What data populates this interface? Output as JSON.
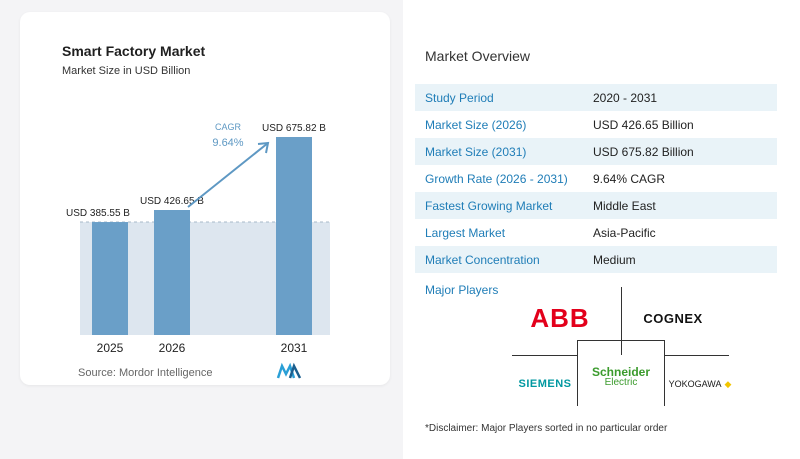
{
  "chart_data": {
    "type": "bar",
    "title": "Smart Factory Market",
    "subtitle": "Market Size in USD Billion",
    "categories": [
      "2025",
      "2026",
      "2031"
    ],
    "values": [
      385.55,
      426.65,
      675.82
    ],
    "data_labels": [
      "USD 385.55 B",
      "USD 426.65 B",
      "USD 675.82 B"
    ],
    "cagr_label": "CAGR",
    "cagr_value": "9.64%",
    "source": "Source:  Mordor Intelligence",
    "colors": {
      "bar": "#6a9fc8",
      "bar_top": "#5b8fbb",
      "shade": "#dde6ef",
      "arrow": "#5e98c3",
      "cagr_text": "#5e98c3"
    }
  },
  "overview": {
    "title": "Market Overview",
    "rows": [
      {
        "label": "Study Period",
        "value": "2020 - 2031"
      },
      {
        "label": "Market Size (2026)",
        "value": "USD 426.65 Billion"
      },
      {
        "label": "Market Size (2031)",
        "value": "USD 675.82 Billion"
      },
      {
        "label": "Growth Rate (2026 - 2031)",
        "value": "9.64% CAGR"
      },
      {
        "label": "Fastest Growing Market",
        "value": "Middle East"
      },
      {
        "label": "Largest Market",
        "value": "Asia-Pacific"
      },
      {
        "label": "Market Concentration",
        "value": "Medium"
      }
    ],
    "label_color": "#1f7db7"
  },
  "players": {
    "title": "Major Players",
    "logos": {
      "abb": "ABB",
      "cognex": "COGNEX",
      "siemens": "SIEMENS",
      "schneider_1": "Schneider",
      "schneider_2": "Electric",
      "yokogawa": "YOKOGAWA"
    },
    "disclaimer": "*Disclaimer: Major Players sorted in no particular order"
  }
}
